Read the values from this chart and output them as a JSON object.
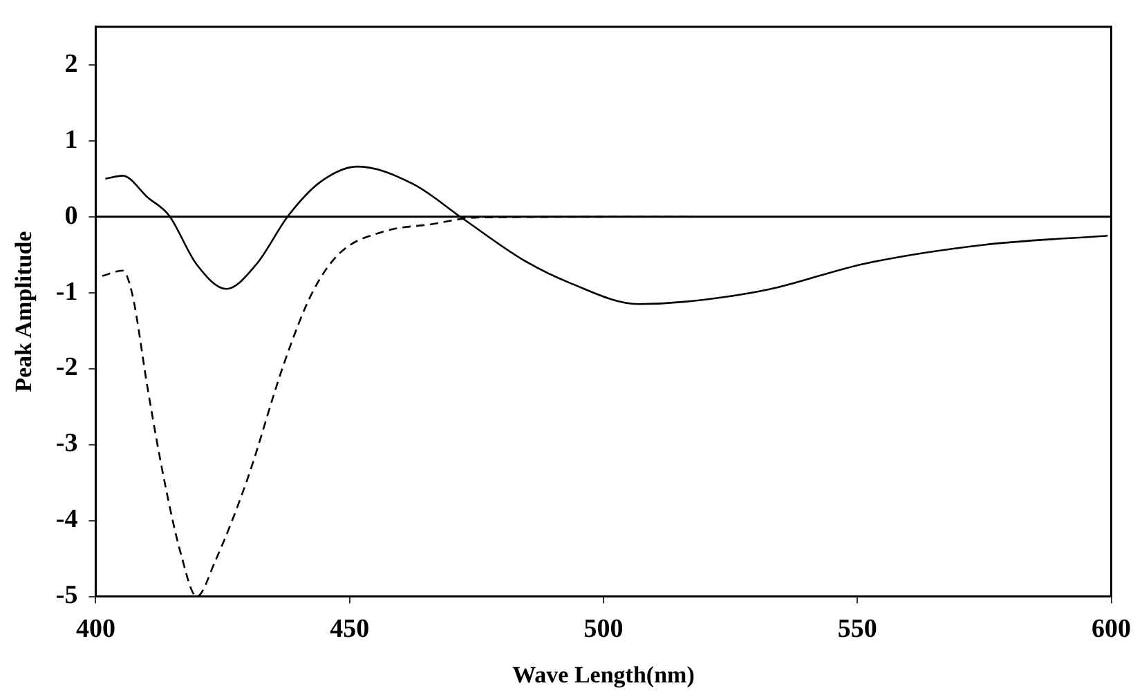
{
  "chart_data": {
    "type": "line",
    "xlabel": "Wave Length(nm)",
    "ylabel": "Peak Amplitude",
    "xlim": [
      400,
      600
    ],
    "xticks": [
      400,
      450,
      500,
      550,
      600
    ],
    "ylim": [
      -5,
      2.5
    ],
    "yticks": [
      -5,
      -4,
      -3,
      -2,
      -1,
      0,
      1,
      2
    ],
    "grid": false,
    "legend": false,
    "marker": "none",
    "ref_lines": [
      {
        "axis": "y",
        "value": 0,
        "color": "#000000"
      }
    ],
    "series": [
      {
        "color": "#000000",
        "line_style": "solid",
        "x": [
          401.9,
          405.3,
          410.3,
          414.4,
          419.9,
          425.7,
          431.6,
          438,
          444.3,
          451.6,
          462.5,
          472.4,
          484.2,
          493.3,
          506.9,
          516,
          532.4,
          551.3,
          574.9,
          599.3
        ],
        "values": [
          0.5,
          0.54,
          0.25,
          0.02,
          -0.63,
          -0.95,
          -0.63,
          0.02,
          0.46,
          0.66,
          0.43,
          -0.03,
          -0.57,
          -0.87,
          -1.15,
          -1.12,
          -0.96,
          -0.62,
          -0.37,
          -0.25
        ]
      },
      {
        "color": "#000000",
        "line_style": "dashed",
        "x": [
          401.3,
          405.3,
          407.2,
          410.3,
          413.5,
          416.7,
          419.9,
          423.5,
          429.8,
          437.1,
          442.5,
          447.9,
          457,
          466,
          475.2,
          517.8
        ],
        "values": [
          -0.78,
          -0.71,
          -1.02,
          -2.29,
          -3.47,
          -4.42,
          -5.0,
          -4.54,
          -3.47,
          -1.93,
          -1.02,
          -0.49,
          -0.19,
          -0.1,
          -0.01,
          0
        ]
      }
    ]
  }
}
